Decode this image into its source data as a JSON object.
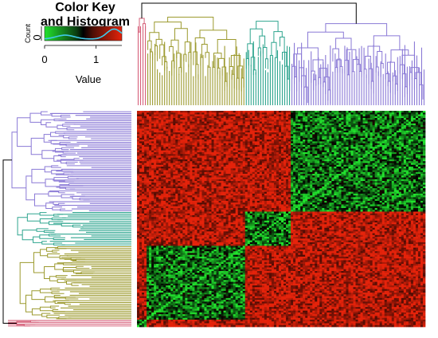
{
  "chart_data": {
    "type": "heatmap",
    "title": "",
    "clusters": [
      {
        "name": "pink",
        "color": "#D6607A",
        "share": 0.03
      },
      {
        "name": "olive",
        "color": "#9C9A2E",
        "share": 0.34
      },
      {
        "name": "teal",
        "color": "#2FA58F",
        "share": 0.16
      },
      {
        "name": "purple",
        "color": "#8A79D6",
        "share": 0.47
      }
    ],
    "within_cluster_value": 0.4,
    "between_cluster_value": 1.35,
    "diagonal_value": 0.0,
    "value_range": [
      0,
      1.5
    ],
    "color_scale": {
      "low": "#22E32E",
      "mid": "#000000",
      "high": "#E5230B"
    },
    "histogram_line_color": "#3FC9E8",
    "color_key": {
      "title": "Color Key\nand Histogram",
      "title_line1": "Color Key",
      "title_line2": "and Histogram",
      "xlabel": "Value",
      "ylabel": "Count",
      "x_ticks": [
        0,
        1
      ],
      "y_ticks": [
        0
      ]
    }
  }
}
